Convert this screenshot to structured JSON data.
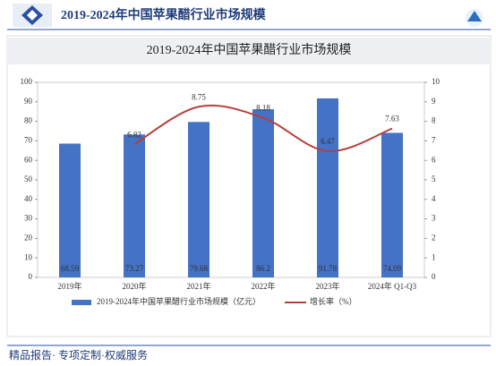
{
  "header": {
    "title": "2019-2024年中国苹果醋行业市场规模"
  },
  "chart_data": {
    "type": "bar",
    "title": "2019-2024年中国苹果醋行业市场规模",
    "categories": [
      "2019年",
      "2020年",
      "2021年",
      "2022年",
      "2023年",
      "2024年 Q1-Q3"
    ],
    "series": [
      {
        "name": "2019-2024年中国苹果醋行业市场规模（亿元）",
        "type": "bar",
        "color": "#4472c4",
        "values": [
          68.59,
          73.27,
          79.68,
          86.2,
          91.78,
          74.09
        ]
      },
      {
        "name": "增长率（%）",
        "type": "line",
        "axis": "y2",
        "color": "#b5403c",
        "values": [
          null,
          6.82,
          8.75,
          8.18,
          6.47,
          7.63
        ]
      }
    ],
    "ylim": [
      0,
      100
    ],
    "yticks": [
      0,
      10,
      20,
      30,
      40,
      50,
      60,
      70,
      80,
      90,
      100
    ],
    "y2lim": [
      0,
      10
    ],
    "y2ticks": [
      0,
      1,
      2,
      3,
      4,
      5,
      6,
      7,
      8,
      9,
      10
    ],
    "legend": "bottom"
  },
  "footer": {
    "text": "精品报告· 专项定制·权威服务"
  }
}
